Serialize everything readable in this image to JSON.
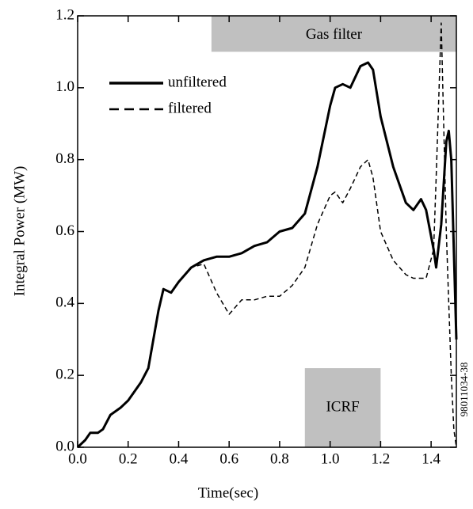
{
  "chart_data": {
    "type": "line",
    "x_label": "Time(sec)",
    "y_label": "Integral Power (MW)",
    "x": [
      0.0,
      0.03,
      0.05,
      0.08,
      0.1,
      0.13,
      0.17,
      0.2,
      0.25,
      0.28,
      0.3,
      0.32,
      0.34,
      0.37,
      0.4,
      0.45,
      0.5,
      0.55,
      0.6,
      0.65,
      0.7,
      0.75,
      0.8,
      0.85,
      0.9,
      0.95,
      1.0,
      1.02,
      1.05,
      1.08,
      1.12,
      1.15,
      1.17,
      1.2,
      1.25,
      1.3,
      1.33,
      1.36,
      1.38,
      1.41,
      1.42,
      1.44,
      1.46,
      1.47,
      1.48,
      1.49,
      1.5
    ],
    "series": [
      {
        "name": "unfiltered",
        "color": "#000000",
        "dash": "solid",
        "values": [
          0.0,
          0.02,
          0.04,
          0.04,
          0.05,
          0.09,
          0.11,
          0.13,
          0.18,
          0.22,
          0.3,
          0.38,
          0.44,
          0.43,
          0.46,
          0.5,
          0.52,
          0.53,
          0.53,
          0.54,
          0.56,
          0.57,
          0.6,
          0.61,
          0.65,
          0.78,
          0.95,
          1.0,
          1.01,
          1.0,
          1.06,
          1.07,
          1.05,
          0.92,
          0.78,
          0.68,
          0.66,
          0.69,
          0.66,
          0.55,
          0.5,
          0.62,
          0.85,
          0.88,
          0.8,
          0.55,
          0.3
        ]
      },
      {
        "name": "filtered",
        "color": "#000000",
        "dash": "dashed",
        "values": [
          0.0,
          0.02,
          0.04,
          0.04,
          0.05,
          0.09,
          0.11,
          0.13,
          0.18,
          0.22,
          0.3,
          0.38,
          0.44,
          0.43,
          0.46,
          0.5,
          0.51,
          0.43,
          0.37,
          0.41,
          0.41,
          0.42,
          0.42,
          0.45,
          0.5,
          0.62,
          0.7,
          0.71,
          0.68,
          0.72,
          0.78,
          0.8,
          0.75,
          0.6,
          0.52,
          0.48,
          0.47,
          0.47,
          0.47,
          0.55,
          0.75,
          1.18,
          0.6,
          0.4,
          0.2,
          0.05,
          0.0
        ]
      }
    ],
    "xlim": [
      0,
      1.5
    ],
    "xticks": [
      {
        "value": 0,
        "label": "0.0"
      },
      0.2,
      0.4,
      0.6,
      0.8,
      {
        "value": 1,
        "label": "1.0"
      },
      1.2,
      1.4
    ],
    "ylim": [
      0,
      1.2
    ],
    "yticks": [
      {
        "value": 0,
        "label": "0.0"
      },
      0.2,
      0.4,
      0.6,
      0.8,
      {
        "value": 1,
        "label": "1.0"
      },
      1.2
    ],
    "legend": "upper left",
    "shaded_regions": [
      {
        "label": "Gas filter",
        "xlim": [
          0.53,
          1.5
        ],
        "ylim": [
          1.1,
          1.2
        ],
        "color": "#c0c0c0"
      },
      {
        "label": "ICRF",
        "xlim": [
          0.9,
          1.2
        ],
        "ylim": [
          0,
          0.22
        ],
        "color": "#c0c0c0"
      }
    ],
    "side_note": "98011034-38"
  }
}
